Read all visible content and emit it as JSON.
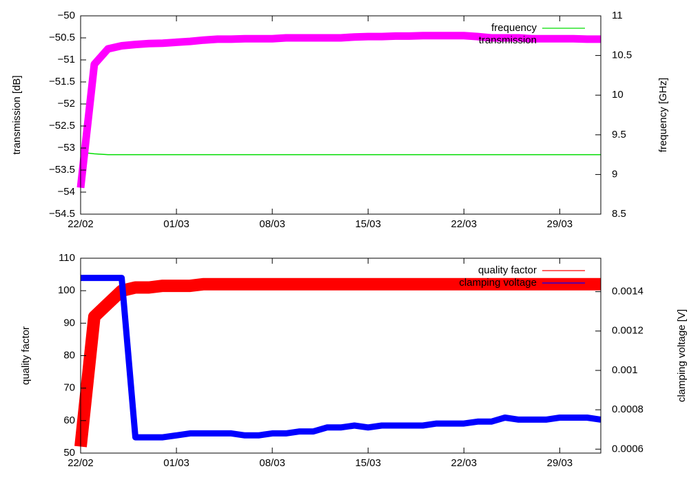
{
  "chart_data": [
    {
      "type": "line",
      "y_label": "transmission [dB]",
      "y2_label": "frequency [GHz]",
      "x": [
        "22/02",
        "23/02",
        "24/02",
        "25/02",
        "26/02",
        "27/02",
        "28/02",
        "01/03",
        "02/03",
        "03/03",
        "04/03",
        "05/03",
        "06/03",
        "07/03",
        "08/03",
        "09/03",
        "10/03",
        "11/03",
        "12/03",
        "13/03",
        "14/03",
        "15/03",
        "16/03",
        "17/03",
        "18/03",
        "19/03",
        "20/03",
        "21/03",
        "22/03",
        "23/03",
        "24/03",
        "25/03",
        "26/03",
        "27/03",
        "28/03",
        "29/03",
        "30/03",
        "31/03",
        "01/04"
      ],
      "xlim": [
        "22/02",
        "01/04"
      ],
      "xticks": [
        "22/02",
        "01/03",
        "08/03",
        "15/03",
        "22/03",
        "29/03"
      ],
      "ylim": [
        -54.5,
        -50
      ],
      "yticks": [
        {
          "value": -54.5,
          "label": "−54.5"
        },
        {
          "value": -54,
          "label": "−54"
        },
        {
          "value": -53.5,
          "label": "−53.5"
        },
        {
          "value": -53,
          "label": "−53"
        },
        {
          "value": -52.5,
          "label": "−52.5"
        },
        {
          "value": -52,
          "label": "−52"
        },
        {
          "value": -51.5,
          "label": "−51.5"
        },
        {
          "value": -51,
          "label": "−51"
        },
        {
          "value": -50.5,
          "label": "−50.5"
        },
        {
          "value": -50,
          "label": "−50"
        }
      ],
      "y2lim": [
        8.5,
        11
      ],
      "y2ticks": [
        8.5,
        9,
        9.5,
        10,
        10.5,
        11
      ],
      "legend": "upper right",
      "series": [
        {
          "name": "frequency",
          "color": "#00dd00",
          "axis": "y2",
          "values": [
            9.28,
            9.26,
            9.25,
            9.25,
            9.25,
            9.25,
            9.25,
            9.25,
            9.25,
            9.25,
            9.25,
            9.25,
            9.25,
            9.25,
            9.25,
            9.25,
            9.25,
            9.25,
            9.25,
            9.25,
            9.25,
            9.25,
            9.25,
            9.25,
            9.25,
            9.25,
            9.25,
            9.25,
            9.25,
            9.25,
            9.25,
            9.25,
            9.25,
            9.25,
            9.25,
            9.25,
            9.25,
            9.25,
            9.25
          ]
        },
        {
          "name": "transmission",
          "color": "#ff00ff",
          "values": [
            -53.9,
            -51.1,
            -50.75,
            -50.68,
            -50.65,
            -50.63,
            -50.62,
            -50.6,
            -50.58,
            -50.55,
            -50.53,
            -50.53,
            -50.52,
            -50.52,
            -50.52,
            -50.5,
            -50.5,
            -50.5,
            -50.5,
            -50.5,
            -50.48,
            -50.47,
            -50.47,
            -50.46,
            -50.46,
            -50.45,
            -50.45,
            -50.45,
            -50.45,
            -50.47,
            -50.5,
            -50.5,
            -50.5,
            -50.52,
            -50.52,
            -50.52,
            -50.52,
            -50.53,
            -50.53
          ]
        }
      ]
    },
    {
      "type": "line",
      "y_label": "quality factor",
      "y2_label": "clamping voltage [V]",
      "x": [
        "22/02",
        "23/02",
        "24/02",
        "25/02",
        "26/02",
        "27/02",
        "28/02",
        "01/03",
        "02/03",
        "03/03",
        "04/03",
        "05/03",
        "06/03",
        "07/03",
        "08/03",
        "09/03",
        "10/03",
        "11/03",
        "12/03",
        "13/03",
        "14/03",
        "15/03",
        "16/03",
        "17/03",
        "18/03",
        "19/03",
        "20/03",
        "21/03",
        "22/03",
        "23/03",
        "24/03",
        "25/03",
        "26/03",
        "27/03",
        "28/03",
        "29/03",
        "30/03",
        "31/03",
        "01/04"
      ],
      "xlim": [
        "22/02",
        "01/04"
      ],
      "xticks": [
        "22/02",
        "01/03",
        "08/03",
        "15/03",
        "22/03",
        "29/03"
      ],
      "ylim": [
        50,
        110
      ],
      "yticks": [
        50,
        60,
        70,
        80,
        90,
        100,
        110
      ],
      "y2lim": [
        0.00058,
        0.00157
      ],
      "y2ticks": [
        0.0006,
        0.0008,
        0.001,
        0.0012,
        0.0014
      ],
      "legend": "upper right",
      "series": [
        {
          "name": "quality factor",
          "color": "#ff0000",
          "values": [
            52,
            92,
            96,
            100,
            101,
            101,
            101.5,
            101.5,
            101.5,
            102,
            102,
            102,
            102,
            102,
            102,
            102,
            102,
            102,
            102,
            102,
            102,
            102,
            102,
            102,
            102,
            102,
            102,
            102,
            102,
            102,
            102,
            102,
            102,
            102,
            102,
            102,
            102,
            102,
            102
          ]
        },
        {
          "name": "clamping voltage",
          "color": "#0000ff",
          "axis": "y2",
          "values": [
            0.00147,
            0.00147,
            0.00147,
            0.00147,
            0.00066,
            0.00066,
            0.00066,
            0.00067,
            0.00068,
            0.00068,
            0.00068,
            0.00068,
            0.00067,
            0.00067,
            0.00068,
            0.00068,
            0.00069,
            0.00069,
            0.00071,
            0.00071,
            0.00072,
            0.00071,
            0.00072,
            0.00072,
            0.00072,
            0.00072,
            0.00073,
            0.00073,
            0.00073,
            0.00074,
            0.00074,
            0.00076,
            0.00075,
            0.00075,
            0.00075,
            0.00076,
            0.00076,
            0.00076,
            0.00075
          ]
        }
      ]
    }
  ]
}
